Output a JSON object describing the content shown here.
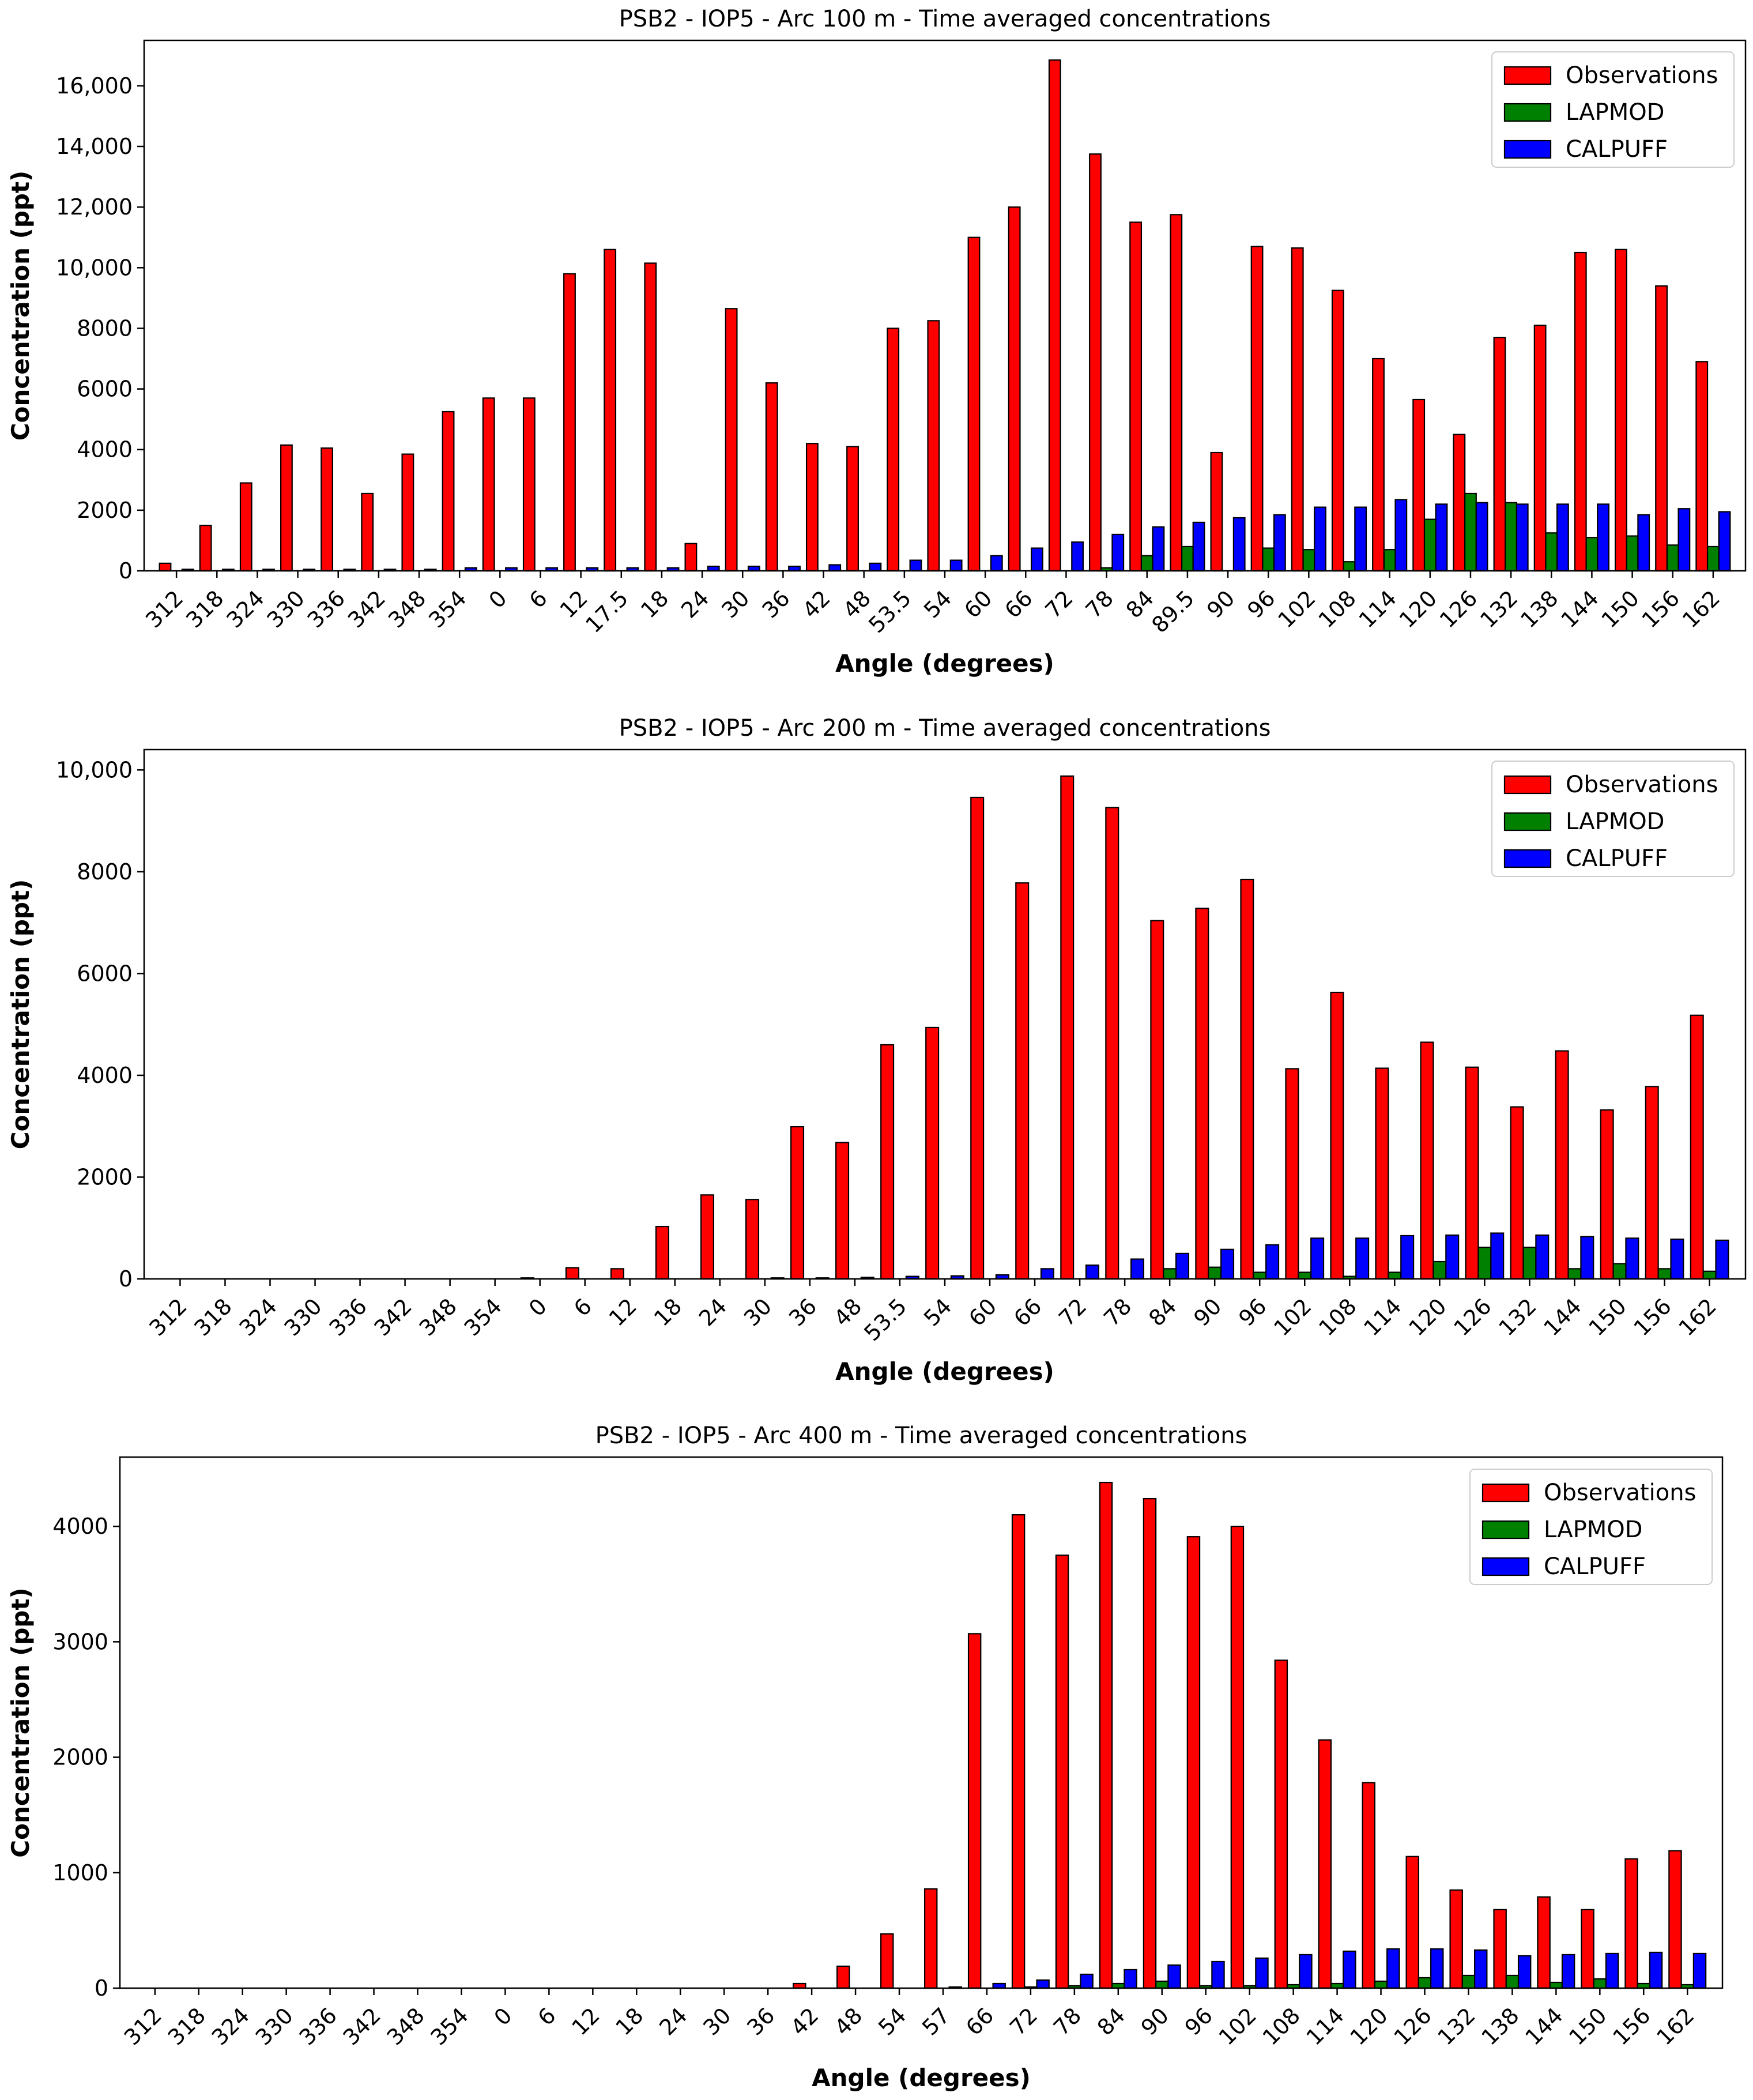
{
  "colors": {
    "observations": "#ff0000",
    "lapmod": "#008000",
    "calpuff": "#0000ff",
    "edge": "#000000"
  },
  "chart_data": [
    {
      "type": "bar",
      "title": "PSB2 - IOP5 - Arc 100 m - Time averaged concentrations",
      "xlabel": "Angle (degrees)",
      "ylabel": "Concentration (ppt)",
      "ylim": [
        0,
        17500
      ],
      "yticks": [
        0,
        2000,
        4000,
        6000,
        8000,
        10000,
        12000,
        14000,
        16000
      ],
      "ytick_labels": [
        "0",
        "2000",
        "4000",
        "6000",
        "8000",
        "10,000",
        "12,000",
        "14,000",
        "16,000"
      ],
      "legend_position": "top-right",
      "categories": [
        "312",
        "318",
        "324",
        "330",
        "336",
        "342",
        "348",
        "354",
        "0",
        "6",
        "12",
        "17.5",
        "18",
        "24",
        "30",
        "36",
        "42",
        "48",
        "53.5",
        "54",
        "60",
        "66",
        "72",
        "78",
        "84",
        "89.5",
        "90",
        "96",
        "102",
        "108",
        "114",
        "120",
        "126",
        "132",
        "138",
        "144",
        "150",
        "156",
        "162"
      ],
      "series": [
        {
          "name": "Observations",
          "values": [
            250,
            1500,
            2900,
            4150,
            4050,
            2550,
            3850,
            5250,
            5700,
            5700,
            9800,
            10600,
            10150,
            900,
            8650,
            6200,
            4200,
            4100,
            8000,
            8250,
            11000,
            12000,
            16850,
            13750,
            11500,
            11750,
            3900,
            10700,
            10650,
            9250,
            7000,
            5650,
            4500,
            7700,
            8100,
            10500,
            10600,
            9400,
            6900
          ]
        },
        {
          "name": "LAPMOD",
          "values": [
            0,
            0,
            0,
            0,
            0,
            0,
            0,
            0,
            0,
            0,
            0,
            0,
            0,
            0,
            0,
            0,
            0,
            0,
            0,
            0,
            0,
            0,
            0,
            100,
            500,
            800,
            0,
            750,
            700,
            300,
            700,
            1700,
            2550,
            2250,
            1250,
            1100,
            1150,
            850,
            800
          ]
        },
        {
          "name": "CALPUFF",
          "values": [
            50,
            50,
            50,
            50,
            50,
            50,
            50,
            100,
            100,
            100,
            100,
            100,
            100,
            150,
            150,
            150,
            200,
            250,
            350,
            350,
            500,
            750,
            950,
            1200,
            1450,
            1600,
            1750,
            1850,
            2100,
            2100,
            2350,
            2200,
            2250,
            2200,
            2200,
            2200,
            1850,
            2050,
            1950
          ]
        }
      ]
    },
    {
      "type": "bar",
      "title": "PSB2 - IOP5 - Arc 200 m - Time averaged concentrations",
      "xlabel": "Angle (degrees)",
      "ylabel": "Concentration (ppt)",
      "ylim": [
        0,
        10400
      ],
      "yticks": [
        0,
        2000,
        4000,
        6000,
        8000,
        10000
      ],
      "ytick_labels": [
        "0",
        "2000",
        "4000",
        "6000",
        "8000",
        "10,000"
      ],
      "legend_position": "top-right",
      "categories": [
        "312",
        "318",
        "324",
        "330",
        "336",
        "342",
        "348",
        "354",
        "0",
        "6",
        "12",
        "18",
        "24",
        "30",
        "36",
        "48",
        "53.5",
        "54",
        "60",
        "66",
        "72",
        "78",
        "84",
        "90",
        "96",
        "102",
        "108",
        "114",
        "120",
        "126",
        "132",
        "144",
        "150",
        "156",
        "162"
      ],
      "series": [
        {
          "name": "Observations",
          "values": [
            0,
            0,
            0,
            0,
            0,
            0,
            0,
            0,
            20,
            220,
            200,
            1030,
            1650,
            1560,
            2990,
            2680,
            4600,
            4940,
            9460,
            7780,
            9880,
            9260,
            7040,
            7280,
            7850,
            4130,
            5630,
            4140,
            4650,
            4160,
            3380,
            4480,
            3320,
            3780,
            5180
          ]
        },
        {
          "name": "LAPMOD",
          "values": [
            0,
            0,
            0,
            0,
            0,
            0,
            0,
            0,
            0,
            0,
            0,
            0,
            0,
            0,
            0,
            0,
            0,
            0,
            0,
            0,
            0,
            0,
            200,
            230,
            130,
            130,
            50,
            130,
            340,
            620,
            620,
            200,
            300,
            200,
            150
          ]
        },
        {
          "name": "CALPUFF",
          "values": [
            0,
            0,
            0,
            0,
            0,
            0,
            0,
            0,
            0,
            0,
            0,
            0,
            0,
            20,
            20,
            30,
            50,
            60,
            80,
            200,
            270,
            390,
            500,
            580,
            670,
            800,
            800,
            850,
            860,
            900,
            860,
            830,
            800,
            780,
            760
          ]
        }
      ]
    },
    {
      "type": "bar",
      "title": "PSB2 - IOP5 - Arc 400 m - Time averaged concentrations",
      "xlabel": "Angle (degrees)",
      "ylabel": "Concentration (ppt)",
      "ylim": [
        0,
        4600
      ],
      "yticks": [
        0,
        1000,
        2000,
        3000,
        4000
      ],
      "ytick_labels": [
        "0",
        "1000",
        "2000",
        "3000",
        "4000"
      ],
      "legend_position": "top-right",
      "categories": [
        "312",
        "318",
        "324",
        "330",
        "336",
        "342",
        "348",
        "354",
        "0",
        "6",
        "12",
        "18",
        "24",
        "30",
        "36",
        "42",
        "48",
        "54",
        "57",
        "66",
        "72",
        "78",
        "84",
        "90",
        "96",
        "102",
        "108",
        "114",
        "120",
        "126",
        "132",
        "138",
        "144",
        "150",
        "156",
        "162"
      ],
      "series": [
        {
          "name": "Observations",
          "values": [
            0,
            0,
            0,
            0,
            0,
            0,
            0,
            0,
            0,
            0,
            0,
            0,
            0,
            0,
            0,
            40,
            190,
            470,
            860,
            3070,
            4100,
            3750,
            4380,
            4240,
            3910,
            4000,
            2840,
            2150,
            1780,
            1140,
            850,
            680,
            790,
            680,
            1120,
            1190
          ]
        },
        {
          "name": "LAPMOD",
          "values": [
            0,
            0,
            0,
            0,
            0,
            0,
            0,
            0,
            0,
            0,
            0,
            0,
            0,
            0,
            0,
            0,
            0,
            0,
            0,
            0,
            10,
            20,
            40,
            60,
            20,
            20,
            30,
            40,
            60,
            90,
            110,
            110,
            50,
            80,
            40,
            30
          ]
        },
        {
          "name": "CALPUFF",
          "values": [
            0,
            0,
            0,
            0,
            0,
            0,
            0,
            0,
            0,
            0,
            0,
            0,
            0,
            0,
            0,
            0,
            0,
            0,
            10,
            40,
            70,
            120,
            160,
            200,
            230,
            260,
            290,
            320,
            340,
            340,
            330,
            280,
            290,
            300,
            310,
            300
          ]
        }
      ]
    }
  ]
}
